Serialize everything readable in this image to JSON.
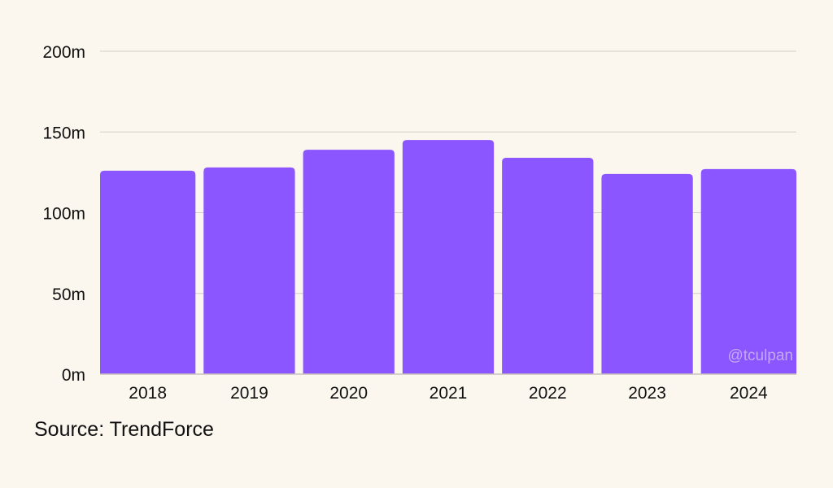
{
  "chart_data": {
    "type": "bar",
    "categories": [
      "2018",
      "2019",
      "2020",
      "2021",
      "2022",
      "2023",
      "2024"
    ],
    "values": [
      126,
      128,
      139,
      145,
      134,
      124,
      127
    ],
    "title": "",
    "xlabel": "",
    "ylabel": "",
    "ylim": [
      0,
      200
    ],
    "yticks": [
      0,
      50,
      100,
      150,
      200
    ],
    "ytick_labels": [
      "0m",
      "50m",
      "100m",
      "150m",
      "200m"
    ],
    "grid": true,
    "colors": {
      "bar": "#8b55ff",
      "grid": "#d3cec6",
      "axis": "#c9c4bc",
      "background": "#fcf7ee",
      "watermark": "#c4a9f5"
    }
  },
  "source_label": "Source: TrendForce",
  "watermark": "@tculpan"
}
